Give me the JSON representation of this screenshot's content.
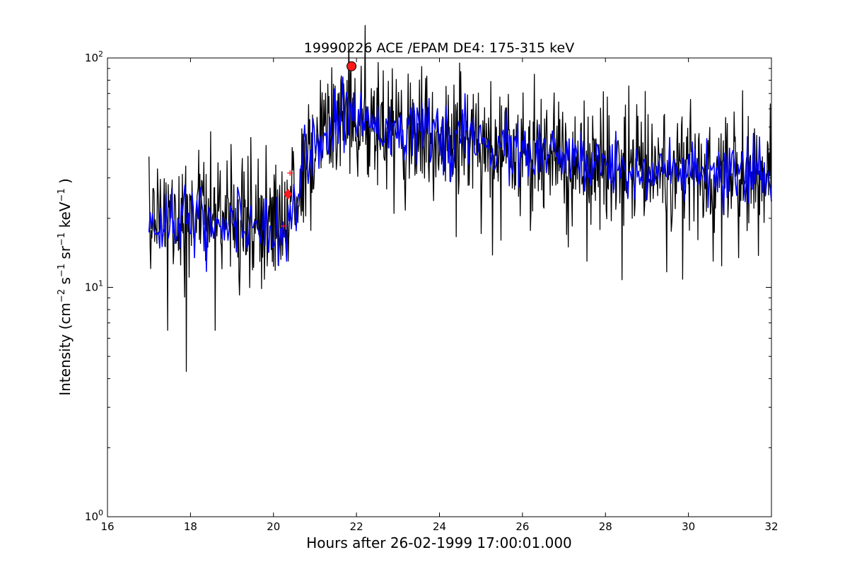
{
  "chart_data": {
    "type": "line",
    "title": "19990226 ACE /EPAM DE4: 175-315 keV",
    "xlabel": "Hours after 26-02-1999 17:00:01.000",
    "ylabel": "Intensity (cm⁻² s⁻¹ sr⁻¹ keV⁻¹)",
    "xlim": [
      16,
      32
    ],
    "ylim": [
      1,
      100
    ],
    "yscale": "log",
    "grid": false,
    "x_ticks": [
      16,
      18,
      20,
      22,
      24,
      26,
      28,
      30,
      32
    ],
    "x_tick_labels": [
      "16",
      "18",
      "20",
      "22",
      "24",
      "26",
      "28",
      "30",
      "32"
    ],
    "y_ticks": [
      1,
      10,
      100
    ],
    "y_tick_labels": [
      {
        "base": "10",
        "exp": "0"
      },
      {
        "base": "10",
        "exp": "1"
      },
      {
        "base": "10",
        "exp": "2"
      }
    ],
    "ylabel_parts": {
      "pre": "Intensity (cm",
      "e1": "−2",
      "s": " s",
      "e2": "−1",
      "sr": " sr",
      "e3": "−1",
      "kev": " keV",
      "e4": "−1",
      "post": " )"
    },
    "series": [
      {
        "color": "#000000",
        "style": "raw-noisy",
        "t_start": 17.0,
        "t_end": 32.0,
        "profile": [
          [
            17.0,
            19
          ],
          [
            17.5,
            20
          ],
          [
            18.0,
            20
          ],
          [
            18.5,
            19
          ],
          [
            19.0,
            19
          ],
          [
            19.5,
            19
          ],
          [
            20.0,
            18
          ],
          [
            20.3,
            18
          ],
          [
            20.5,
            24
          ],
          [
            20.8,
            38
          ],
          [
            21.2,
            45
          ],
          [
            21.6,
            52
          ],
          [
            21.9,
            58
          ],
          [
            22.2,
            54
          ],
          [
            22.6,
            52
          ],
          [
            23.0,
            50
          ],
          [
            23.5,
            48
          ],
          [
            24.0,
            45
          ],
          [
            25.0,
            42
          ],
          [
            26.0,
            38
          ],
          [
            27.0,
            36
          ],
          [
            28.0,
            34
          ],
          [
            29.0,
            32
          ],
          [
            30.0,
            31
          ],
          [
            31.0,
            30
          ],
          [
            32.0,
            30
          ]
        ],
        "spikes": [
          [
            17.9,
            4.3
          ],
          [
            17.45,
            6.5
          ],
          [
            18.6,
            6.5
          ],
          [
            22.9,
            21
          ],
          [
            28.4,
            10.8
          ],
          [
            30.6,
            13
          ],
          [
            27.1,
            15
          ],
          [
            27.55,
            13
          ],
          [
            21.85,
            85
          ],
          [
            22.65,
            88
          ],
          [
            31.3,
            72
          ],
          [
            30.05,
            66
          ],
          [
            23.35,
            66
          ]
        ]
      },
      {
        "color": "#0000ff",
        "style": "smoothed",
        "t_start": 17.0,
        "t_end": 32.0,
        "profile": [
          [
            17.0,
            19
          ],
          [
            17.5,
            20
          ],
          [
            18.0,
            20
          ],
          [
            18.5,
            19
          ],
          [
            19.0,
            19
          ],
          [
            19.5,
            19
          ],
          [
            20.0,
            18
          ],
          [
            20.3,
            18
          ],
          [
            20.5,
            24
          ],
          [
            20.8,
            38
          ],
          [
            21.2,
            45
          ],
          [
            21.6,
            52
          ],
          [
            21.9,
            58
          ],
          [
            22.2,
            54
          ],
          [
            22.6,
            52
          ],
          [
            23.0,
            50
          ],
          [
            23.5,
            48
          ],
          [
            24.0,
            45
          ],
          [
            25.0,
            42
          ],
          [
            26.0,
            38
          ],
          [
            27.0,
            36
          ],
          [
            28.0,
            34
          ],
          [
            29.0,
            32
          ],
          [
            30.0,
            31
          ],
          [
            31.0,
            30
          ],
          [
            32.0,
            30
          ]
        ]
      }
    ],
    "markers": [
      {
        "shape": "circle",
        "x": 21.88,
        "y": 92,
        "color": "#ff1a1a"
      },
      {
        "shape": "diamond",
        "x": 20.35,
        "y": 25.5,
        "color": "#ff1a1a"
      },
      {
        "shape": "plus",
        "x": 20.4,
        "y": 31.5,
        "color": "#ff1a1a"
      },
      {
        "shape": "plus",
        "x": 20.25,
        "y": 18.5,
        "color": "#ff1a1a"
      }
    ]
  }
}
